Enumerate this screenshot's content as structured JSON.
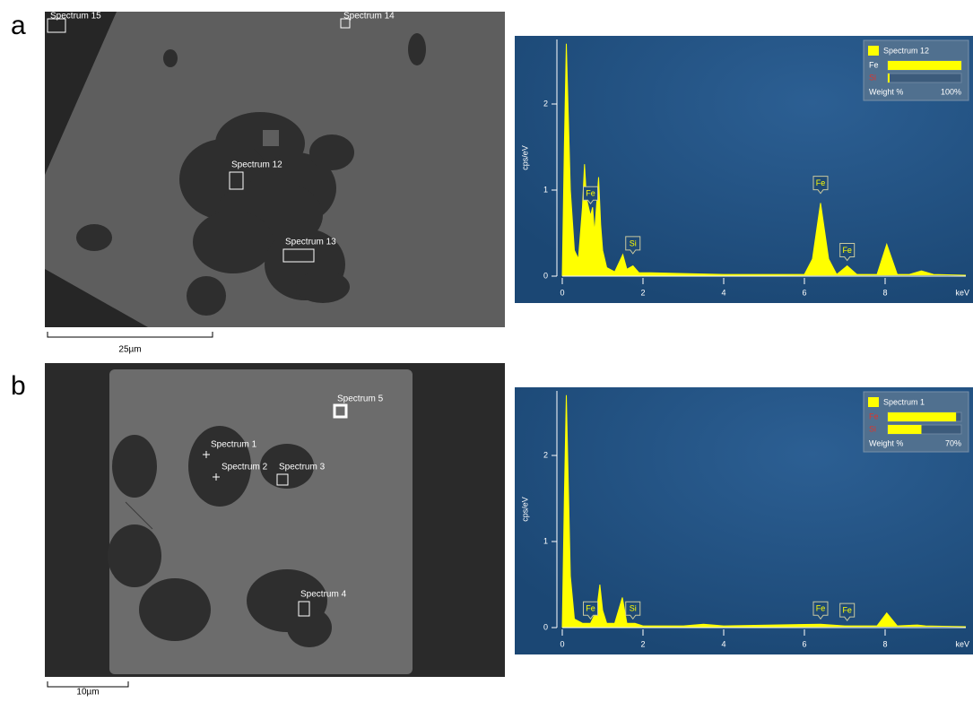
{
  "panel_labels": [
    "a",
    "b"
  ],
  "images": [
    {
      "spectra": [
        "Spectrum 15",
        "Spectrum 14",
        "Spectrum 12",
        "Spectrum 13"
      ],
      "scale_bar": "25µm"
    },
    {
      "spectra": [
        "Spectrum 5",
        "Spectrum 1",
        "Spectrum 2",
        "Spectrum 3",
        "Spectrum 4"
      ],
      "scale_bar": "10µm"
    }
  ],
  "chart_data": [
    {
      "type": "area",
      "color": "#ffff00",
      "x": [
        0,
        0.05,
        0.1,
        0.2,
        0.3,
        0.4,
        0.5,
        0.55,
        0.6,
        0.7,
        0.75,
        0.8,
        0.9,
        0.95,
        1.0,
        1.1,
        1.3,
        1.5,
        1.6,
        1.75,
        1.9,
        2.2,
        3,
        4,
        5,
        6,
        6.2,
        6.4,
        6.6,
        6.8,
        7.06,
        7.3,
        7.8,
        8.04,
        8.3,
        8.6,
        8.9,
        9.2,
        10
      ],
      "values": [
        0,
        1.5,
        2.7,
        1,
        0.3,
        0.2,
        0.8,
        1.3,
        0.9,
        0.7,
        0.8,
        0.5,
        1.15,
        0.6,
        0.3,
        0.1,
        0.05,
        0.25,
        0.08,
        0.12,
        0.04,
        0.04,
        0.03,
        0.02,
        0.02,
        0.02,
        0.2,
        0.85,
        0.2,
        0.02,
        0.12,
        0.02,
        0.02,
        0.37,
        0.02,
        0.02,
        0.06,
        0.02,
        0.01
      ],
      "xlim": [
        0,
        10
      ],
      "ylim": [
        0,
        2.75
      ],
      "xticks": [
        0,
        2,
        4,
        6,
        8
      ],
      "yticks": [
        0,
        1,
        2
      ],
      "x_unit": "keV",
      "ylabel": "cps/eV",
      "annotations": [
        {
          "text": "Fe",
          "x": 0.7,
          "y": 0.8
        },
        {
          "text": "Si",
          "x": 1.75,
          "y": 0.22
        },
        {
          "text": "Fe",
          "x": 6.4,
          "y": 0.92
        },
        {
          "text": "Fe",
          "x": 7.06,
          "y": 0.14
        }
      ],
      "legend": {
        "title": "Spectrum 12",
        "label": "Weight %",
        "lim": [
          0,
          100
        ],
        "max": {
          "value": 100,
          "label": "100%"
        },
        "elements": [
          {
            "name": "Fe",
            "value": 100,
            "color": "#ffffff"
          },
          {
            "name": "Si",
            "value": 1,
            "color": "#e0332a"
          }
        ]
      }
    },
    {
      "type": "area",
      "color": "#ffff00",
      "x": [
        0,
        0.05,
        0.1,
        0.2,
        0.3,
        0.5,
        0.7,
        0.85,
        0.93,
        1.0,
        1.1,
        1.3,
        1.49,
        1.6,
        1.8,
        2,
        3,
        3.5,
        4,
        6.4,
        7,
        7.8,
        8.04,
        8.3,
        8.8,
        9,
        10
      ],
      "values": [
        0,
        1.5,
        2.7,
        0.6,
        0.1,
        0.05,
        0.05,
        0.2,
        0.5,
        0.2,
        0.05,
        0.05,
        0.35,
        0.05,
        0.05,
        0.02,
        0.02,
        0.04,
        0.02,
        0.04,
        0.02,
        0.02,
        0.17,
        0.02,
        0.03,
        0.02,
        0.01
      ],
      "xlim": [
        0,
        10
      ],
      "ylim": [
        0,
        2.75
      ],
      "xticks": [
        0,
        2,
        4,
        6,
        8
      ],
      "yticks": [
        0,
        1,
        2
      ],
      "x_unit": "keV",
      "ylabel": "cps/eV",
      "annotations": [
        {
          "text": "Fe",
          "x": 0.7,
          "y": 0.06
        },
        {
          "text": "Si",
          "x": 1.75,
          "y": 0.06
        },
        {
          "text": "Fe",
          "x": 6.4,
          "y": 0.06
        },
        {
          "text": "Fe",
          "x": 7.06,
          "y": 0.04
        }
      ],
      "legend": {
        "title": "Spectrum 1",
        "label": "Weight %",
        "lim": [
          0,
          70
        ],
        "max": {
          "value": 70,
          "label": "70%"
        },
        "elements": [
          {
            "name": "Fe",
            "value": 65,
            "color": "#e0332a"
          },
          {
            "name": "Si",
            "value": 32,
            "color": "#e0332a"
          }
        ]
      }
    }
  ]
}
